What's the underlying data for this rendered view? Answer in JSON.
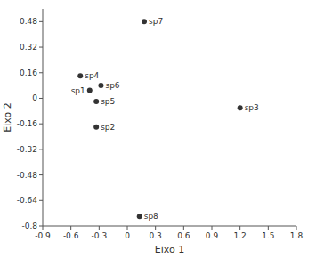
{
  "chart_data": {
    "type": "scatter",
    "xlabel": "Eixo 1",
    "ylabel": "Eixo 2",
    "labels": [
      "sp7",
      "sp4",
      "sp1",
      "sp6",
      "sp5",
      "sp3",
      "sp2",
      "sp8"
    ],
    "x": [
      0.18,
      -0.5,
      -0.4,
      -0.28,
      -0.33,
      1.2,
      -0.33,
      0.13
    ],
    "values": [
      0.48,
      0.14,
      0.05,
      0.08,
      -0.02,
      -0.06,
      -0.18,
      -0.74
    ],
    "color": "#333333",
    "xlim": [
      -0.9,
      1.8
    ],
    "ylim": [
      -0.8,
      0.56
    ],
    "xticks": [
      -0.9,
      -0.6,
      -0.3,
      0.0,
      0.3,
      0.6,
      0.9,
      1.2,
      1.5,
      1.8
    ],
    "yticks": [
      -0.8,
      -0.64,
      -0.48,
      -0.32,
      -0.16,
      0.0,
      0.16,
      0.32,
      0.48
    ]
  }
}
